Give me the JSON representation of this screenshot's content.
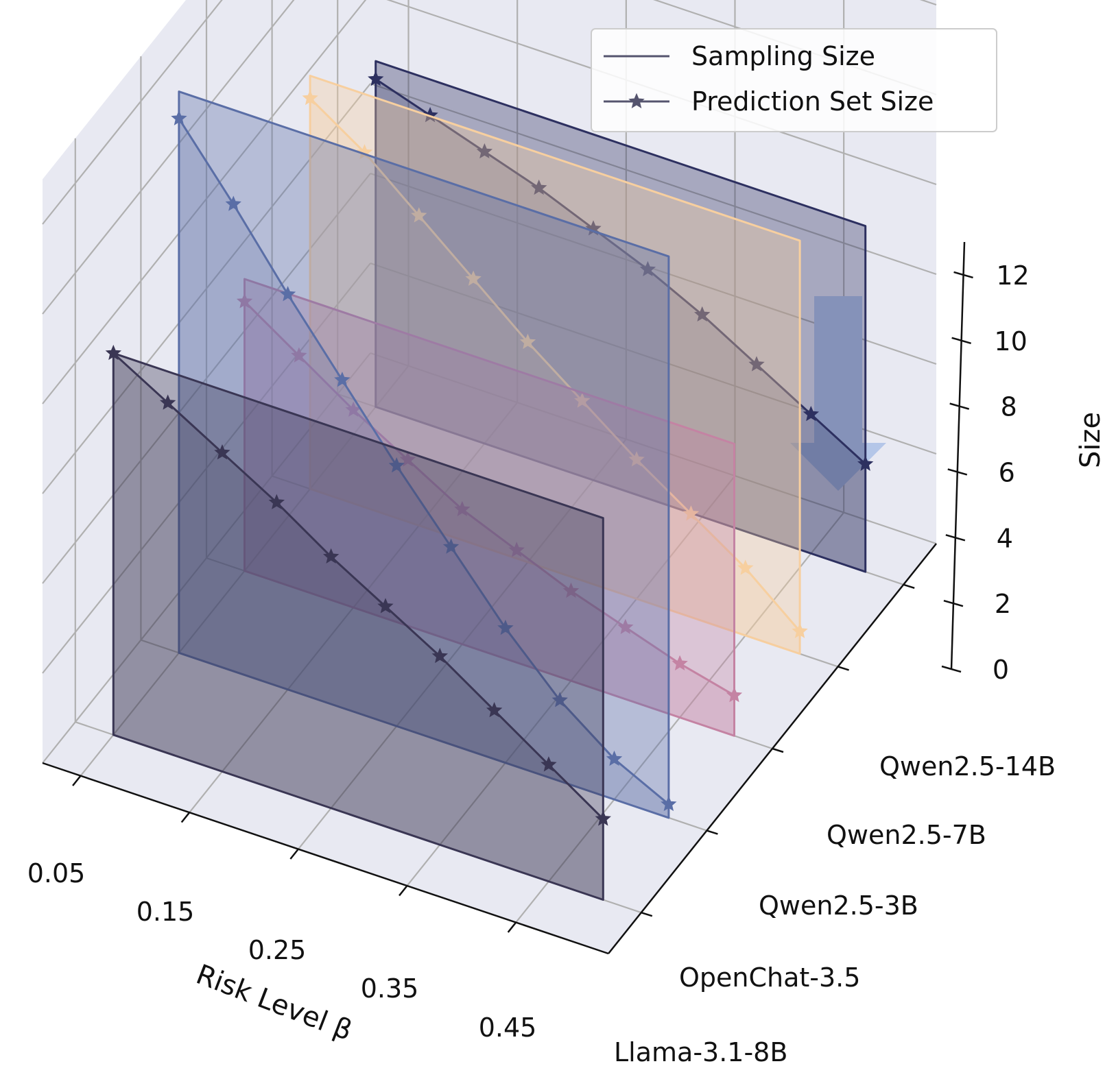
{
  "chart_data": {
    "type": "line",
    "projection": "3d",
    "title": "",
    "xlabel": "Risk Level β",
    "ylabel": "",
    "zlabel": "Size",
    "x_ticks": [
      "0.05",
      "0.15",
      "0.25",
      "0.35",
      "0.45"
    ],
    "x": [
      0.05,
      0.1,
      0.15,
      0.2,
      0.25,
      0.3,
      0.35,
      0.4,
      0.45,
      0.5
    ],
    "y_ticks": [
      "Llama-3.1-8B",
      "OpenChat-3.5",
      "Qwen2.5-3B",
      "Qwen2.5-7B",
      "Qwen2.5-14B"
    ],
    "z_ticks": [
      "0",
      "2",
      "4",
      "6",
      "8",
      "10",
      "12"
    ],
    "zlim": [
      0,
      13
    ],
    "grid": true,
    "legend_position": "top-right",
    "legend": [
      {
        "label": "Sampling Size",
        "marker": "none"
      },
      {
        "label": "Prediction Set Size",
        "marker": "star"
      }
    ],
    "series": [
      {
        "model": "Llama-3.1-8B",
        "color": "#3a3654",
        "sampling_size": 8.5,
        "prediction_set_size": [
          8.5,
          7.8,
          7.1,
          6.4,
          5.6,
          4.9,
          4.2,
          3.4,
          2.6,
          1.8
        ]
      },
      {
        "model": "OpenChat-3.5",
        "color": "#5a6ea6",
        "sampling_size": 12.5,
        "prediction_set_size": [
          11.9,
          10.4,
          8.8,
          7.3,
          5.8,
          4.4,
          3.0,
          1.8,
          0.9,
          0.3
        ]
      },
      {
        "model": "Qwen2.5-3B",
        "color": "#c483a3",
        "sampling_size": 6.5,
        "prediction_set_size": [
          6.0,
          5.2,
          4.4,
          3.7,
          3.0,
          2.5,
          2.0,
          1.6,
          1.2,
          0.9
        ]
      },
      {
        "model": "Qwen2.5-7B",
        "color": "#f7cf9f",
        "sampling_size": 9.2,
        "prediction_set_size": [
          8.7,
          7.9,
          6.9,
          5.9,
          4.9,
          4.0,
          3.1,
          2.3,
          1.5,
          0.5
        ]
      },
      {
        "model": "Qwen2.5-14B",
        "color": "#2d3060",
        "sampling_size": 7.7,
        "prediction_set_size": [
          7.3,
          6.9,
          6.5,
          6.1,
          5.6,
          5.1,
          4.5,
          3.8,
          3.1,
          2.4
        ]
      }
    ],
    "annotation_arrow_color": "#b4c6e8"
  }
}
